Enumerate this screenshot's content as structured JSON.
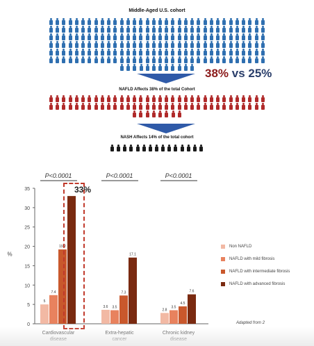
{
  "infographic": {
    "cohort_title": "Middle-Aged U.S. cohort",
    "nafld_caption": "NAFLD Affects 38% of the total Cohort",
    "nash_caption": "NASH Affects 14% of the total cohort",
    "compare_a": "38%",
    "compare_vs": " vs ",
    "compare_b": "25%",
    "colors": {
      "blue": "#2f6fb0",
      "red": "#b02a2a",
      "black": "#1a1a1a",
      "arrow": "#2f5aa8"
    }
  },
  "chart_data": {
    "type": "bar",
    "ylabel": "%",
    "ylim": [
      0,
      35
    ],
    "yticks": [
      0,
      5,
      10,
      15,
      20,
      25,
      30,
      35
    ],
    "categories": [
      "Cardiovascular disease",
      "Extra-hepatic cancer",
      "Chronic kidney disease"
    ],
    "category_lines": [
      [
        "Cardiovascular",
        "disease"
      ],
      [
        "Extra-hepatic",
        "cancer"
      ],
      [
        "Chronic kidney",
        "disease"
      ]
    ],
    "p_values": [
      "P<0.0001",
      "P<0.0001",
      "P<0.0001"
    ],
    "series": [
      {
        "name": "Non NAFLD",
        "color": "#f2b9a4",
        "values": [
          5,
          3.6,
          2.8
        ],
        "labels": [
          "5",
          "3.6",
          "2.8"
        ]
      },
      {
        "name": "NAFLD with mild fibrosis",
        "color": "#e8825e",
        "values": [
          7.4,
          3.5,
          3.5
        ],
        "labels": [
          "7.4",
          "3.5",
          "3.5"
        ]
      },
      {
        "name": "NAFLD with intermediate fibrosis",
        "color": "#c9582c",
        "values": [
          19.2,
          7.3,
          4.5
        ],
        "labels": [
          "19.2",
          "7.3",
          "4.5"
        ]
      },
      {
        "name": "NAFLD with advanced fibrosis",
        "color": "#7a2a10",
        "values": [
          33,
          17.1,
          7.6
        ],
        "labels": [
          "",
          "17.1",
          "7.6"
        ]
      }
    ],
    "highlight_label": "33%",
    "note": "Adapted from 2"
  }
}
